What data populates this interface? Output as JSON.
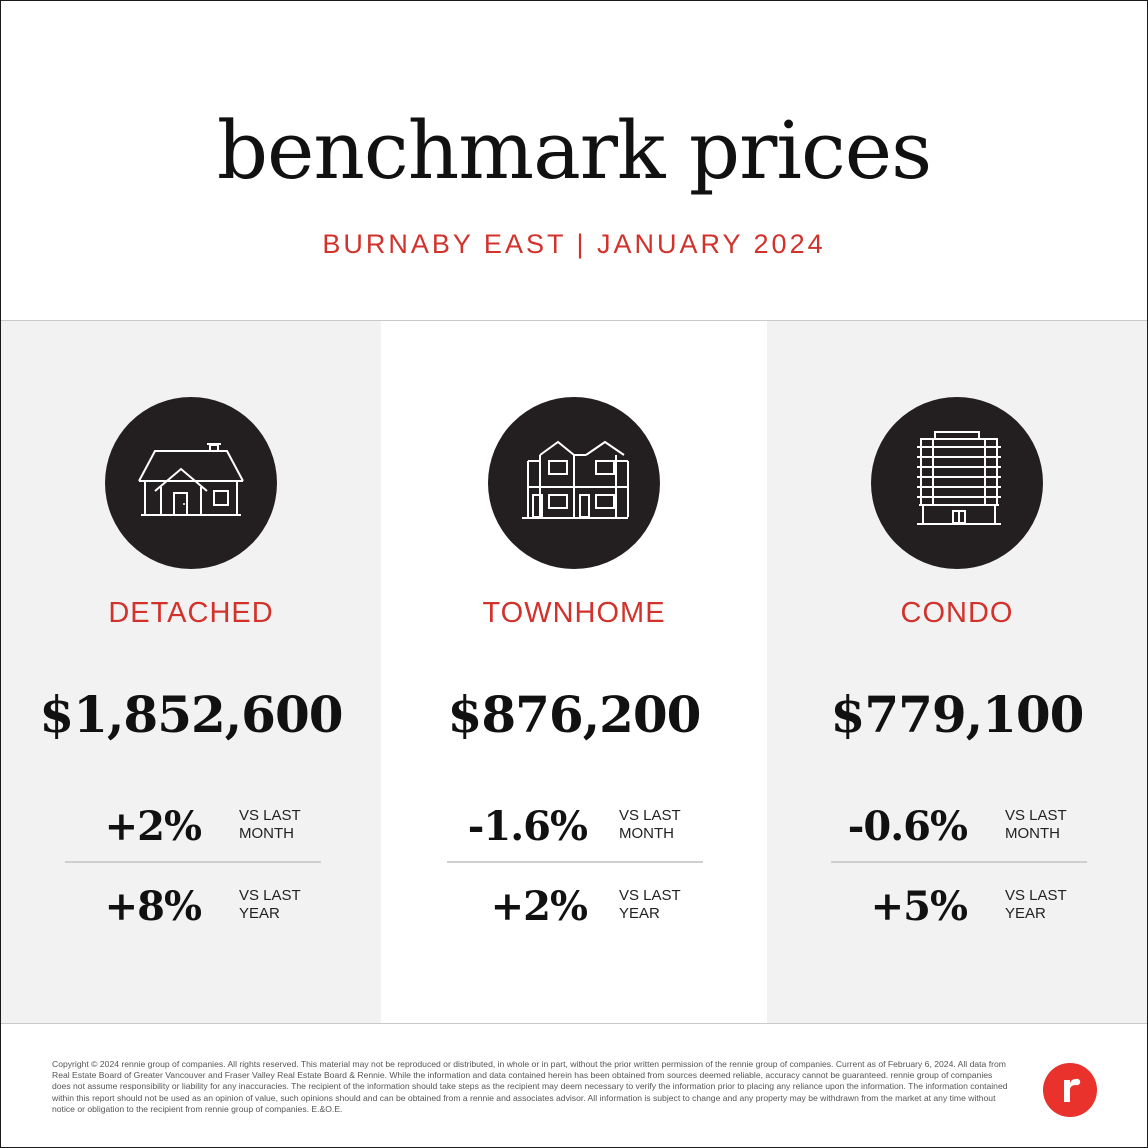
{
  "header": {
    "title": "benchmark prices",
    "subtitle": "BURNABY EAST | JANUARY 2024"
  },
  "colors": {
    "accent_red": "#d1322b",
    "icon_circle": "#231f20",
    "panel_gray": "#f2f2f2"
  },
  "panels": [
    {
      "icon": "detached-house-icon",
      "type": "DETACHED",
      "price": "$1,852,600",
      "month_change": "+2%",
      "year_change": "+8%",
      "vs_last": "VS LAST",
      "month_label": "MONTH",
      "year_label": "YEAR"
    },
    {
      "icon": "townhome-icon",
      "type": "TOWNHOME",
      "price": "$876,200",
      "month_change": "-1.6%",
      "year_change": "+2%",
      "vs_last": "VS LAST",
      "month_label": "MONTH",
      "year_label": "YEAR"
    },
    {
      "icon": "condo-building-icon",
      "type": "CONDO",
      "price": "$779,100",
      "month_change": "-0.6%",
      "year_change": "+5%",
      "vs_last": "VS LAST",
      "month_label": "MONTH",
      "year_label": "YEAR"
    }
  ],
  "footer": {
    "copyright": "Copyright © 2024 rennie group of companies. All rights reserved. This material may not be reproduced or distributed, in whole or in part, without the prior written permission of the rennie group of companies. Current as of February 6, 2024. All data from Real Estate Board of Greater Vancouver and Fraser Valley Real Estate Board & Rennie. While the information and data contained herein has been obtained from sources deemed reliable, accuracy cannot be guaranteed. rennie group of companies does not assume responsibility or liability for any inaccuracies. The recipient of the information should take steps as the recipient may deem necessary to verify the information prior to placing any reliance upon the information. The information contained within this report should not be used as an opinion of value, such opinions should and can be obtained from a rennie and associates advisor. All information is subject to change and any property may be withdrawn from the market at any time without notice or obligation to the recipient from rennie group of companies. E.&O.E.",
    "logo": "rennie-logo-icon"
  }
}
